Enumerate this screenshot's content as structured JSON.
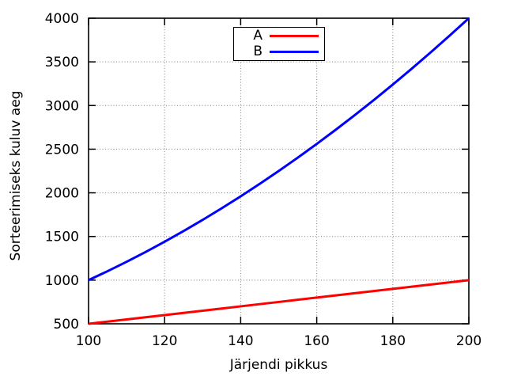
{
  "chart_data": {
    "type": "line",
    "title": "",
    "xlabel": "Järjendi pikkus",
    "ylabel": "Sorteerimiseks kuluv aeg",
    "x": [
      100,
      105,
      110,
      115,
      120,
      125,
      130,
      135,
      140,
      145,
      150,
      155,
      160,
      165,
      170,
      175,
      180,
      185,
      190,
      195,
      200
    ],
    "series": [
      {
        "name": "A",
        "color": "#ff0000",
        "values": [
          500,
          525,
          550,
          575,
          600,
          625,
          650,
          675,
          700,
          725,
          750,
          775,
          800,
          825,
          850,
          875,
          900,
          925,
          950,
          975,
          1000
        ]
      },
      {
        "name": "B",
        "color": "#0000ff",
        "values": [
          1000,
          1102.5,
          1210,
          1322.5,
          1440,
          1562.5,
          1690,
          1822.5,
          1960,
          2102.5,
          2250,
          2402.5,
          2560,
          2722.5,
          2890,
          3062.5,
          3240,
          3422.5,
          3610,
          3802.5,
          4000
        ]
      }
    ],
    "xlim": [
      100,
      200
    ],
    "ylim": [
      500,
      4000
    ],
    "xticks": [
      100,
      120,
      140,
      160,
      180,
      200
    ],
    "yticks": [
      500,
      1000,
      1500,
      2000,
      2500,
      3000,
      3500,
      4000
    ],
    "grid": true,
    "grid_style": "dotted",
    "grid_color": "#808080",
    "axis_color": "#000000",
    "background": "#ffffff",
    "legend_position": "top-center"
  }
}
